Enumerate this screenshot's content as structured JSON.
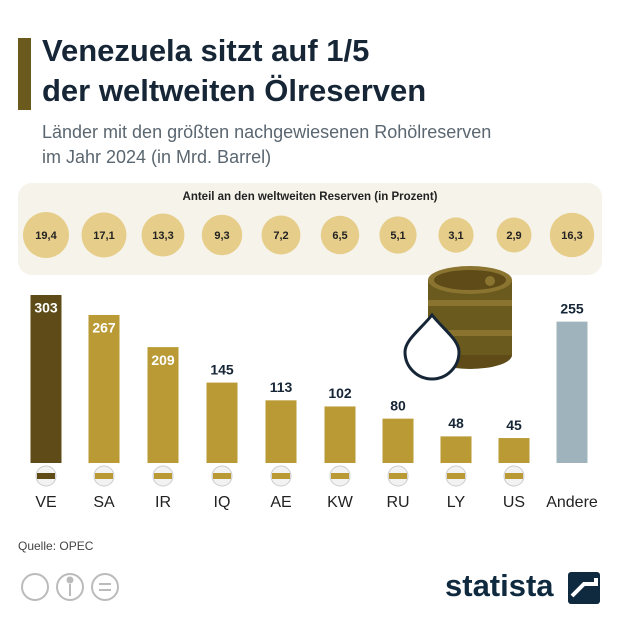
{
  "chart_data": {
    "type": "bar",
    "title_line1": "Venezuela sitzt auf 1/5",
    "title_line2": "der weltweiten Ölreserven",
    "subtitle_line1": "Länder mit den größten nachgewiesenen Rohölreserven",
    "subtitle_line2": "im Jahr 2024 (in Mrd. Barrel)",
    "categories": [
      "VE",
      "SA",
      "IR",
      "IQ",
      "AE",
      "KW",
      "RU",
      "LY",
      "US",
      "Andere"
    ],
    "values": [
      303,
      267,
      209,
      145,
      113,
      102,
      80,
      48,
      45,
      255
    ],
    "colors": [
      "#5e4b17",
      "#b99a35",
      "#b99a35",
      "#b99a35",
      "#b99a35",
      "#b99a35",
      "#b99a35",
      "#b99a35",
      "#b99a35",
      "#9fb3bd"
    ],
    "share": {
      "title": "Anteil an den weltweiten Reserven (in Prozent)",
      "values": [
        19.4,
        17.1,
        13.3,
        9.3,
        7.2,
        6.5,
        5.1,
        3.1,
        2.9,
        16.3
      ],
      "value_labels": [
        "19,4",
        "17,1",
        "13,3",
        "9,3",
        "7,2",
        "6,5",
        "5,1",
        "3,1",
        "2,9",
        "16,3"
      ],
      "color": "#e6cd8a"
    },
    "source": "Quelle: OPEC",
    "brand": "statista"
  }
}
